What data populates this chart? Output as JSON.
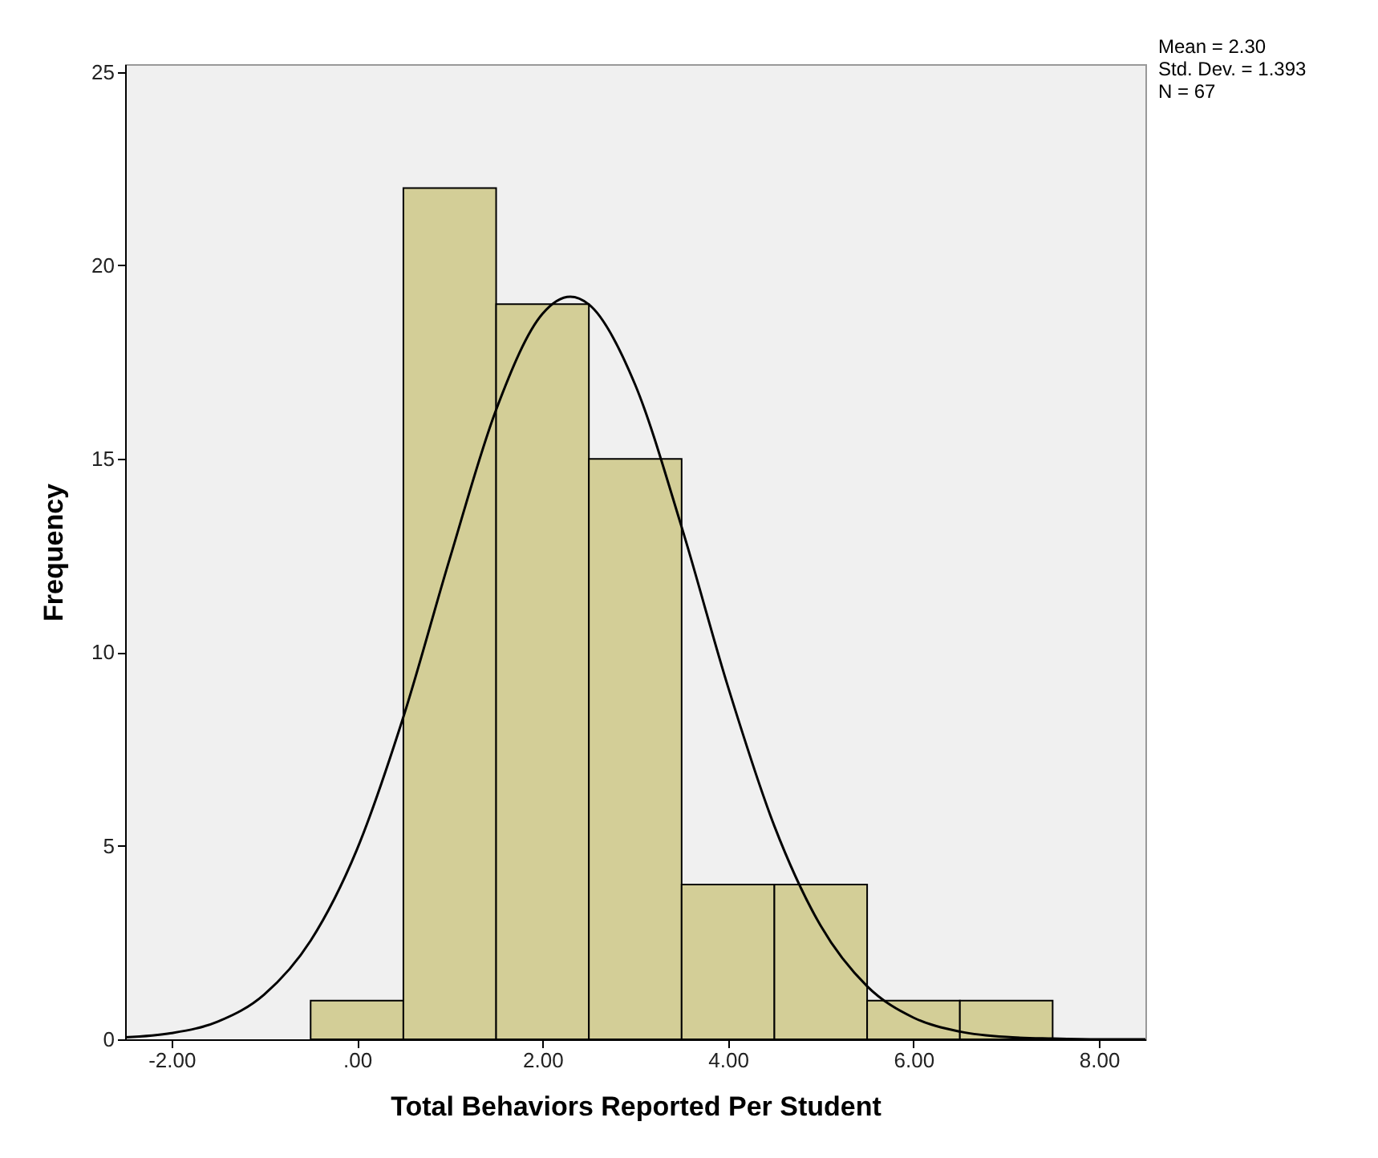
{
  "chart_data": {
    "type": "histogram",
    "xlabel": "Total Behaviors Reported Per Student",
    "ylabel": "Frequency",
    "annotations": [
      "Mean = 2.30",
      "Std. Dev. = 1.393",
      "N = 67"
    ],
    "bins": [
      -0.5,
      0.5,
      1.5,
      2.5,
      3.5,
      4.5,
      5.5,
      6.5,
      7.5
    ],
    "series": [
      {
        "color": "#d3ce97",
        "values": [
          1,
          22,
          19,
          15,
          4,
          4,
          1,
          1
        ]
      },
      {
        "type": "line",
        "color": "#000000",
        "x": [
          -2.5,
          -2,
          -1.5,
          -1,
          -0.5,
          0,
          0.5,
          1,
          1.5,
          2,
          2.3,
          2.5,
          3,
          3.5,
          4,
          4.5,
          5,
          5.5,
          6,
          6.5,
          7,
          7.5,
          8,
          8.5
        ],
        "values": [
          0.05,
          0.16,
          0.46,
          1.16,
          2.55,
          4.91,
          8.33,
          12.42,
          16.27,
          18.75,
          19.19,
          18.99,
          16.91,
          13.24,
          9.11,
          5.51,
          2.93,
          1.37,
          0.56,
          0.2,
          0.06,
          0.02,
          0,
          0
        ]
      }
    ],
    "xlim": [
      -2.5,
      8.5
    ],
    "xticks": [
      {
        "value": -2,
        "label": "-2.00"
      },
      {
        "value": 0,
        "label": ".00"
      },
      {
        "value": 2,
        "label": "2.00"
      },
      {
        "value": 4,
        "label": "4.00"
      },
      {
        "value": 6,
        "label": "6.00"
      },
      {
        "value": 8,
        "label": "8.00"
      }
    ],
    "ylim": [
      0,
      25.2
    ],
    "yticks": [
      0,
      5,
      10,
      15,
      20,
      25
    ],
    "grid": false
  }
}
